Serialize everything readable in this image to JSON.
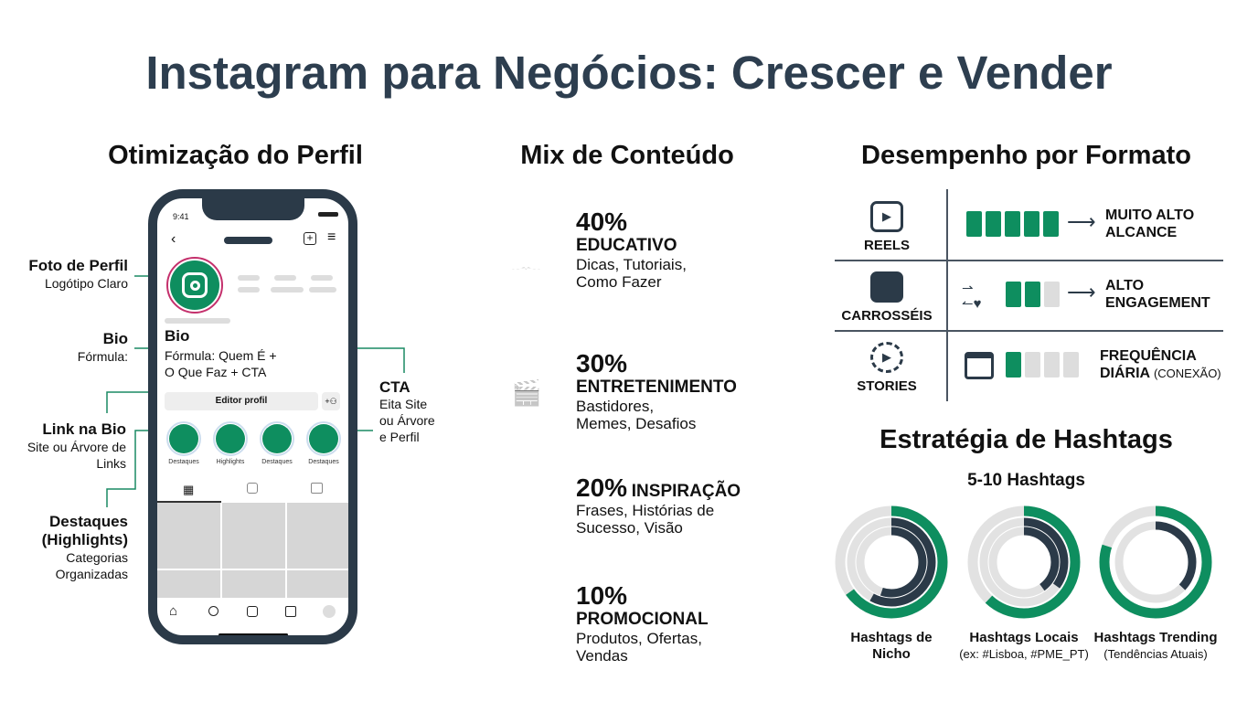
{
  "title": "Instagram para Negócios: Crescer e Vender",
  "colors": {
    "accent": "#0e8e5f",
    "dark": "#2b3a48",
    "muted": "#dddddd"
  },
  "profile": {
    "heading": "Otimização do Perfil",
    "labels": [
      {
        "title": "Foto de Perfil",
        "text": "Logótipo Claro"
      },
      {
        "title": "Bio",
        "text": "Fórmula:"
      },
      {
        "title": "Link na Bio",
        "text": "Site ou Árvore de Links"
      },
      {
        "title": "Destaques (Highlights)",
        "text": "Categorias Organizadas"
      }
    ],
    "cta": {
      "title": "CTA",
      "text": "Eita Site ou Árvore e Perfil"
    },
    "phone": {
      "time": "9:41",
      "bio_title": "Bio",
      "bio_line1": "Fórmula: Quem É +",
      "bio_line2": "O Que Faz + CTA",
      "edit_button": "Editor profil",
      "highlights": [
        "Destaques",
        "Highlights",
        "Destaques",
        "Destaques"
      ],
      "icons": [
        "back-icon",
        "add-post-icon",
        "menu-icon",
        "instagram-icon",
        "grid-icon",
        "reels-tab-icon",
        "tagged-icon",
        "home-icon",
        "search-icon",
        "reels-icon",
        "shop-icon",
        "profile-icon"
      ]
    }
  },
  "mix": {
    "heading": "Mix de Conteúdo",
    "items": [
      {
        "percent": "40%",
        "category": "EDUCATIVO",
        "desc": "Dicas, Tutoriais, Como Fazer",
        "icon": "book-hand-icon"
      },
      {
        "percent": "30%",
        "category": "ENTRETENIMENTO",
        "desc": "Bastidores, Memes, Desafios",
        "icon": "clapper-face-icon"
      },
      {
        "percent": "20%",
        "category": "INSPIRAÇÃO",
        "desc": "Frases, Histórias de Sucesso, Visão",
        "icon": "head-idea-icon"
      },
      {
        "percent": "10%",
        "category": "PROMOCIONAL",
        "desc": "Produtos, Ofertas, Vendas",
        "icon": "price-tag-icon"
      }
    ]
  },
  "performance": {
    "heading": "Desempenho por Formato",
    "rows": [
      {
        "format": "REELS",
        "level": 5,
        "of": 5,
        "line1": "MUITO ALTO",
        "line2": "ALCANCE",
        "note": "",
        "icon": "reels-icon"
      },
      {
        "format": "CARROSSÉIS",
        "level": 2,
        "of": 3,
        "line1": "ALTO",
        "line2": "ENGAGEMENT",
        "note": "",
        "icon": "carousel-icon"
      },
      {
        "format": "STORIES",
        "level": 1,
        "of": 4,
        "line1": "FREQUÊNCIA",
        "line2": "DIÁRIA",
        "note": "(CONEXÃO)",
        "icon": "stories-icon"
      }
    ]
  },
  "hashtags": {
    "heading": "Estratégia de Hashtags",
    "subheading": "5-10 Hashtags",
    "groups": [
      {
        "title": "Hashtags de Nicho",
        "sub": "",
        "rings": [
          0.65,
          0.58,
          0.55
        ]
      },
      {
        "title": "Hashtags Locais",
        "sub": "(ex: #Lisboa, #PME_PT)",
        "rings": [
          0.62,
          0.35,
          0.4
        ]
      },
      {
        "title": "Hashtags Trending",
        "sub": "(Tendências Atuais)",
        "rings": [
          0.8,
          0.37
        ]
      }
    ]
  }
}
